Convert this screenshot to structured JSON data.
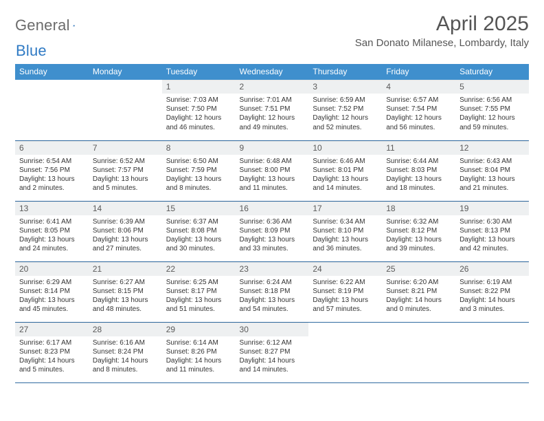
{
  "logo": {
    "word1": "General",
    "word2": "Blue"
  },
  "title": "April 2025",
  "location": "San Donato Milanese, Lombardy, Italy",
  "colors": {
    "header_bg": "#3f8fcd",
    "header_text": "#ffffff",
    "row_border": "#2f6aa0",
    "daynum_bg": "#eef0f1",
    "text": "#333333",
    "logo_gray": "#6b6b6b",
    "logo_blue": "#2f7ac4"
  },
  "day_headers": [
    "Sunday",
    "Monday",
    "Tuesday",
    "Wednesday",
    "Thursday",
    "Friday",
    "Saturday"
  ],
  "weeks": [
    [
      {},
      {},
      {
        "n": "1",
        "sr": "7:03 AM",
        "ss": "7:50 PM",
        "dl": "12 hours and 46 minutes."
      },
      {
        "n": "2",
        "sr": "7:01 AM",
        "ss": "7:51 PM",
        "dl": "12 hours and 49 minutes."
      },
      {
        "n": "3",
        "sr": "6:59 AM",
        "ss": "7:52 PM",
        "dl": "12 hours and 52 minutes."
      },
      {
        "n": "4",
        "sr": "6:57 AM",
        "ss": "7:54 PM",
        "dl": "12 hours and 56 minutes."
      },
      {
        "n": "5",
        "sr": "6:56 AM",
        "ss": "7:55 PM",
        "dl": "12 hours and 59 minutes."
      }
    ],
    [
      {
        "n": "6",
        "sr": "6:54 AM",
        "ss": "7:56 PM",
        "dl": "13 hours and 2 minutes."
      },
      {
        "n": "7",
        "sr": "6:52 AM",
        "ss": "7:57 PM",
        "dl": "13 hours and 5 minutes."
      },
      {
        "n": "8",
        "sr": "6:50 AM",
        "ss": "7:59 PM",
        "dl": "13 hours and 8 minutes."
      },
      {
        "n": "9",
        "sr": "6:48 AM",
        "ss": "8:00 PM",
        "dl": "13 hours and 11 minutes."
      },
      {
        "n": "10",
        "sr": "6:46 AM",
        "ss": "8:01 PM",
        "dl": "13 hours and 14 minutes."
      },
      {
        "n": "11",
        "sr": "6:44 AM",
        "ss": "8:03 PM",
        "dl": "13 hours and 18 minutes."
      },
      {
        "n": "12",
        "sr": "6:43 AM",
        "ss": "8:04 PM",
        "dl": "13 hours and 21 minutes."
      }
    ],
    [
      {
        "n": "13",
        "sr": "6:41 AM",
        "ss": "8:05 PM",
        "dl": "13 hours and 24 minutes."
      },
      {
        "n": "14",
        "sr": "6:39 AM",
        "ss": "8:06 PM",
        "dl": "13 hours and 27 minutes."
      },
      {
        "n": "15",
        "sr": "6:37 AM",
        "ss": "8:08 PM",
        "dl": "13 hours and 30 minutes."
      },
      {
        "n": "16",
        "sr": "6:36 AM",
        "ss": "8:09 PM",
        "dl": "13 hours and 33 minutes."
      },
      {
        "n": "17",
        "sr": "6:34 AM",
        "ss": "8:10 PM",
        "dl": "13 hours and 36 minutes."
      },
      {
        "n": "18",
        "sr": "6:32 AM",
        "ss": "8:12 PM",
        "dl": "13 hours and 39 minutes."
      },
      {
        "n": "19",
        "sr": "6:30 AM",
        "ss": "8:13 PM",
        "dl": "13 hours and 42 minutes."
      }
    ],
    [
      {
        "n": "20",
        "sr": "6:29 AM",
        "ss": "8:14 PM",
        "dl": "13 hours and 45 minutes."
      },
      {
        "n": "21",
        "sr": "6:27 AM",
        "ss": "8:15 PM",
        "dl": "13 hours and 48 minutes."
      },
      {
        "n": "22",
        "sr": "6:25 AM",
        "ss": "8:17 PM",
        "dl": "13 hours and 51 minutes."
      },
      {
        "n": "23",
        "sr": "6:24 AM",
        "ss": "8:18 PM",
        "dl": "13 hours and 54 minutes."
      },
      {
        "n": "24",
        "sr": "6:22 AM",
        "ss": "8:19 PM",
        "dl": "13 hours and 57 minutes."
      },
      {
        "n": "25",
        "sr": "6:20 AM",
        "ss": "8:21 PM",
        "dl": "14 hours and 0 minutes."
      },
      {
        "n": "26",
        "sr": "6:19 AM",
        "ss": "8:22 PM",
        "dl": "14 hours and 3 minutes."
      }
    ],
    [
      {
        "n": "27",
        "sr": "6:17 AM",
        "ss": "8:23 PM",
        "dl": "14 hours and 5 minutes."
      },
      {
        "n": "28",
        "sr": "6:16 AM",
        "ss": "8:24 PM",
        "dl": "14 hours and 8 minutes."
      },
      {
        "n": "29",
        "sr": "6:14 AM",
        "ss": "8:26 PM",
        "dl": "14 hours and 11 minutes."
      },
      {
        "n": "30",
        "sr": "6:12 AM",
        "ss": "8:27 PM",
        "dl": "14 hours and 14 minutes."
      },
      {},
      {},
      {}
    ]
  ],
  "labels": {
    "sunrise": "Sunrise: ",
    "sunset": "Sunset: ",
    "daylight": "Daylight: "
  }
}
